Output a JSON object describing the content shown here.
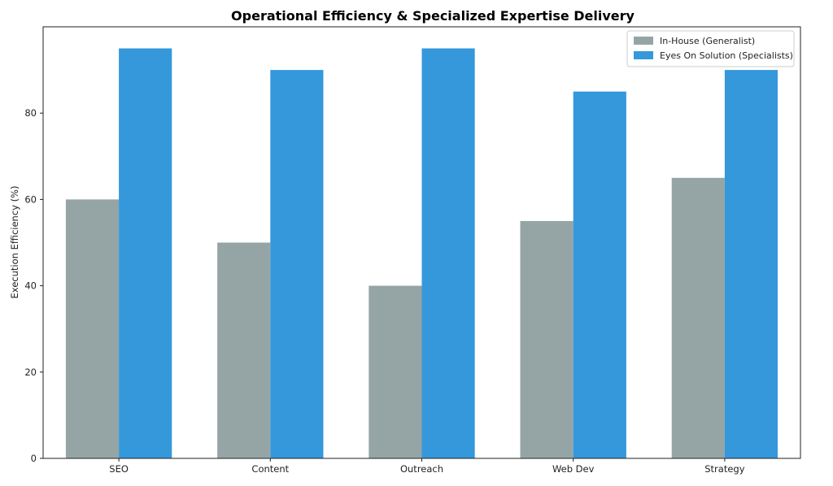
{
  "chart_data": {
    "type": "bar",
    "title": "Operational Efficiency & Specialized Expertise Delivery",
    "xlabel": "",
    "ylabel": "Execution Efficiency (%)",
    "categories": [
      "SEO",
      "Content",
      "Outreach",
      "Web Dev",
      "Strategy"
    ],
    "series": [
      {
        "name": "In-House (Generalist)",
        "values": [
          60,
          50,
          40,
          55,
          65
        ],
        "color": "#95a5a6"
      },
      {
        "name": "Eyes On Solution (Specialists)",
        "values": [
          95,
          90,
          95,
          85,
          90
        ],
        "color": "#3498db"
      }
    ],
    "ylim": [
      0,
      100
    ],
    "yticks": [
      0,
      20,
      40,
      60,
      80
    ],
    "grid": false,
    "legend_position": "top-right"
  }
}
